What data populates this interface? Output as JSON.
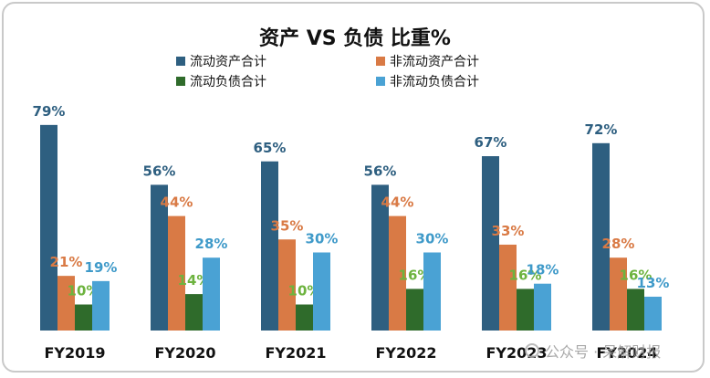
{
  "chart_data": {
    "type": "bar",
    "title": "资产 VS 负债 比重%",
    "categories": [
      "FY2019",
      "FY2020",
      "FY2021",
      "FY2022",
      "FY2023",
      "FY2024"
    ],
    "series": [
      {
        "name": "流动资产合计",
        "values": [
          79,
          56,
          65,
          56,
          67,
          72
        ],
        "labels": [
          "79%",
          "56%",
          "65%",
          "56%",
          "67%",
          "72%"
        ],
        "color": "#2e5f80",
        "label_color": "#2e5f80"
      },
      {
        "name": "非流动资产合计",
        "values": [
          21,
          44,
          35,
          44,
          33,
          28
        ],
        "labels": [
          "21%",
          "44%",
          "35%",
          "44%",
          "33%",
          "28%"
        ],
        "color": "#d97a45",
        "label_color": "#d97a45"
      },
      {
        "name": "流动负债合计",
        "values": [
          10,
          14,
          10,
          16,
          16,
          16
        ],
        "labels": [
          "10%",
          "14%",
          "10%",
          "16%",
          "16%",
          "16%"
        ],
        "color": "#2f6b2b",
        "label_color": "#6db33f"
      },
      {
        "name": "非流动负债合计",
        "values": [
          19,
          28,
          30,
          30,
          18,
          13
        ],
        "labels": [
          "19%",
          "28%",
          "30%",
          "30%",
          "18%",
          "13%"
        ],
        "color": "#4aa2d4",
        "label_color": "#3f9ac9"
      }
    ],
    "ylim": [
      0,
      100
    ],
    "xlabel": "",
    "ylabel": "",
    "grid": false,
    "legend_position": "top-center"
  },
  "watermark": {
    "text": "公众号 · 呆解财报"
  }
}
